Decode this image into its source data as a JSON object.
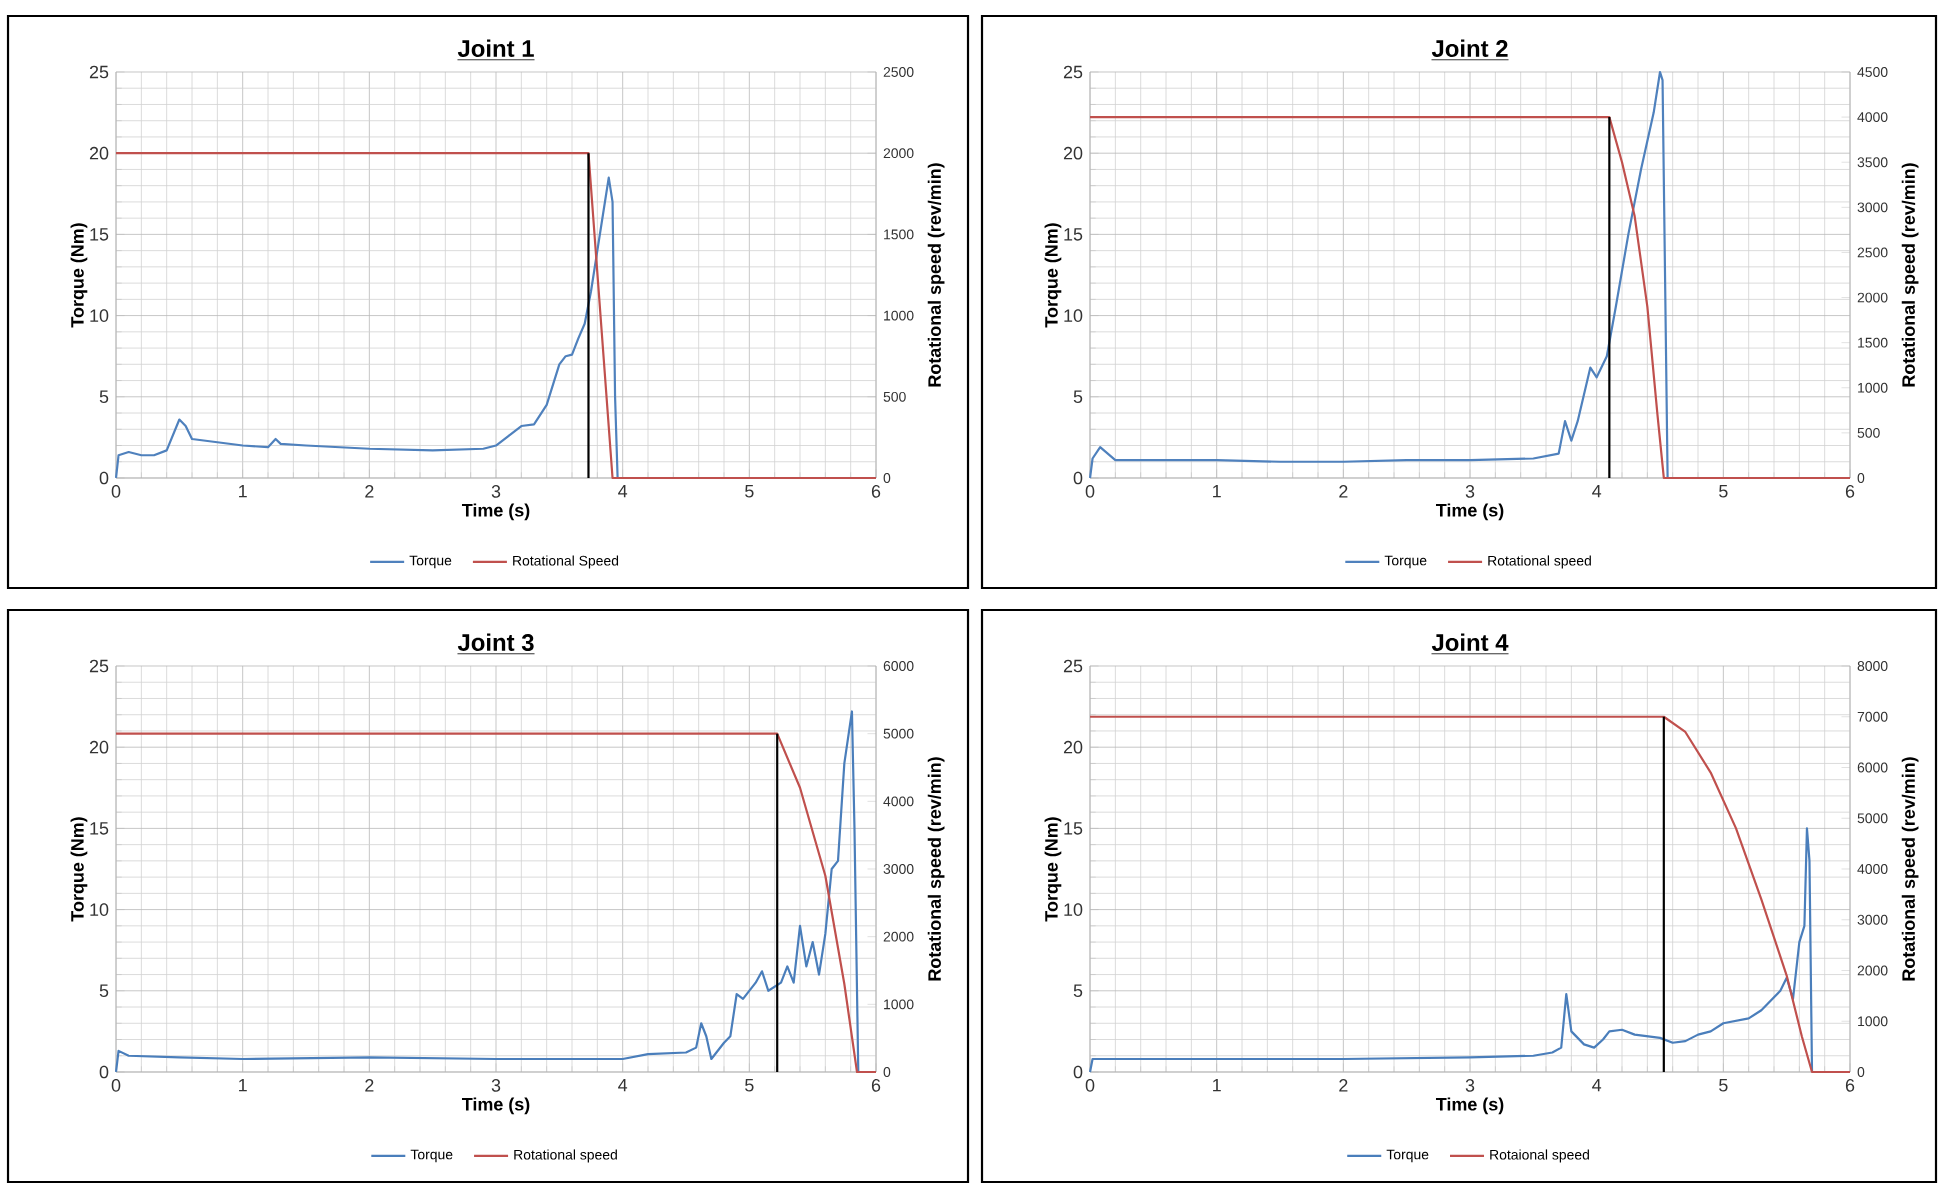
{
  "chart_data": [
    {
      "type": "line",
      "title": "Joint 1",
      "xlabel": "Time (s)",
      "ylabel": "Torque (Nm)",
      "y2label": "Rotational speed (rev/min)",
      "xlim": [
        0,
        6
      ],
      "xticks": [
        0,
        1,
        2,
        3,
        4,
        5,
        6
      ],
      "ylim": [
        0,
        25
      ],
      "yticks": [
        0,
        5,
        10,
        15,
        20,
        25
      ],
      "y2lim": [
        0,
        2500
      ],
      "y2ticks": [
        0,
        500,
        1000,
        1500,
        2000,
        2500
      ],
      "grid": true,
      "legend": "bottom",
      "series": [
        {
          "name": "Torque",
          "color": "#4f81bd",
          "x": [
            0,
            0.02,
            0.1,
            0.2,
            0.3,
            0.4,
            0.5,
            0.55,
            0.6,
            0.8,
            1.0,
            1.2,
            1.26,
            1.3,
            1.5,
            2.0,
            2.5,
            2.9,
            3.0,
            3.1,
            3.2,
            3.3,
            3.4,
            3.5,
            3.55,
            3.6,
            3.65,
            3.7,
            3.75,
            3.8,
            3.85,
            3.89,
            3.92,
            3.94,
            3.96
          ],
          "values": [
            0,
            1.4,
            1.6,
            1.4,
            1.4,
            1.7,
            3.6,
            3.2,
            2.4,
            2.2,
            2.0,
            1.9,
            2.4,
            2.1,
            2.0,
            1.8,
            1.7,
            1.8,
            2.0,
            2.6,
            3.2,
            3.3,
            4.5,
            7.0,
            7.5,
            7.6,
            8.6,
            9.5,
            11.5,
            14,
            16.5,
            18.5,
            17,
            5,
            0
          ]
        },
        {
          "name": "Rotational Speed",
          "color": "#c0504d",
          "axis": "y2",
          "x": [
            0,
            3.73,
            3.92,
            6
          ],
          "values": [
            2000,
            2000,
            0,
            0
          ]
        },
        {
          "color": "#000000",
          "axis": "y2",
          "x": [
            3.73,
            3.73
          ],
          "values": [
            0,
            2000
          ]
        }
      ]
    },
    {
      "type": "line",
      "title": "Joint 2",
      "xlabel": "Time (s)",
      "ylabel": "Torque (Nm)",
      "y2label": "Rotational speed (rev/min)",
      "xlim": [
        0,
        6
      ],
      "xticks": [
        0,
        1,
        2,
        3,
        4,
        5,
        6
      ],
      "ylim": [
        0,
        25
      ],
      "yticks": [
        0,
        5,
        10,
        15,
        20,
        25
      ],
      "y2lim": [
        0,
        4500
      ],
      "y2ticks": [
        0,
        500,
        1000,
        1500,
        2000,
        2500,
        3000,
        3500,
        4000,
        4500
      ],
      "grid": true,
      "legend": "bottom",
      "series": [
        {
          "name": "Torque",
          "color": "#4f81bd",
          "x": [
            0,
            0.02,
            0.08,
            0.2,
            0.5,
            1,
            1.5,
            2,
            2.5,
            3,
            3.5,
            3.7,
            3.75,
            3.8,
            3.85,
            3.95,
            4.0,
            4.08,
            4.15,
            4.25,
            4.35,
            4.45,
            4.5,
            4.52,
            4.56
          ],
          "values": [
            0,
            1.2,
            1.9,
            1.1,
            1.1,
            1.1,
            1.0,
            1.0,
            1.1,
            1.1,
            1.2,
            1.5,
            3.5,
            2.3,
            3.5,
            6.8,
            6.2,
            7.5,
            10.5,
            15,
            19,
            22.5,
            25,
            24.5,
            0
          ]
        },
        {
          "name": "Rotational speed",
          "color": "#c0504d",
          "axis": "y2",
          "x": [
            0,
            4.1,
            4.2,
            4.3,
            4.4,
            4.48,
            4.53,
            6
          ],
          "values": [
            4000,
            4000,
            3500,
            2900,
            1900,
            700,
            0,
            0
          ]
        },
        {
          "color": "#000000",
          "axis": "y2",
          "x": [
            4.1,
            4.1
          ],
          "values": [
            0,
            4000
          ]
        }
      ]
    },
    {
      "type": "line",
      "title": "Joint 3",
      "xlabel": "Time (s)",
      "ylabel": "Torque (Nm)",
      "y2label": "Rotational speed (rev/min)",
      "xlim": [
        0,
        6
      ],
      "xticks": [
        0,
        1,
        2,
        3,
        4,
        5,
        6
      ],
      "ylim": [
        0,
        25
      ],
      "yticks": [
        0,
        5,
        10,
        15,
        20,
        25
      ],
      "y2lim": [
        0,
        6000
      ],
      "y2ticks": [
        0,
        1000,
        2000,
        3000,
        4000,
        5000,
        6000
      ],
      "grid": true,
      "legend": "bottom",
      "series": [
        {
          "name": "Torque",
          "color": "#4a7ebb",
          "x": [
            0,
            0.02,
            0.1,
            0.5,
            1,
            2,
            3,
            4,
            4.2,
            4.5,
            4.58,
            4.62,
            4.66,
            4.7,
            4.8,
            4.85,
            4.9,
            4.95,
            5.05,
            5.1,
            5.15,
            5.25,
            5.3,
            5.35,
            5.4,
            5.45,
            5.5,
            5.55,
            5.6,
            5.65,
            5.7,
            5.75,
            5.81,
            5.83,
            5.86
          ],
          "values": [
            0,
            1.3,
            1.0,
            0.9,
            0.8,
            0.9,
            0.8,
            0.8,
            1.1,
            1.2,
            1.5,
            3.0,
            2.2,
            0.8,
            1.8,
            2.2,
            4.8,
            4.5,
            5.5,
            6.2,
            5.0,
            5.5,
            6.5,
            5.5,
            9.0,
            6.5,
            8.0,
            6.0,
            8.5,
            12.5,
            13,
            19,
            22.2,
            15,
            0
          ]
        },
        {
          "name": "Rotational speed",
          "color": "#c0504d",
          "axis": "y2",
          "x": [
            0,
            5.22,
            5.4,
            5.6,
            5.75,
            5.85,
            6
          ],
          "values": [
            5000,
            5000,
            4200,
            2900,
            1300,
            0,
            0
          ]
        },
        {
          "color": "#000000",
          "axis": "y2",
          "x": [
            5.22,
            5.22
          ],
          "values": [
            0,
            5000
          ]
        }
      ]
    },
    {
      "type": "line",
      "title": "Joint 4",
      "xlabel": "Time (s)",
      "ylabel": "Torque (Nm)",
      "y2label": "Rotational speed (rev/min)",
      "xlim": [
        0,
        6
      ],
      "xticks": [
        0,
        1,
        2,
        3,
        4,
        5,
        6
      ],
      "ylim": [
        0,
        25
      ],
      "yticks": [
        0,
        5,
        10,
        15,
        20,
        25
      ],
      "y2lim": [
        0,
        8000
      ],
      "y2ticks": [
        0,
        1000,
        2000,
        3000,
        4000,
        5000,
        6000,
        7000,
        8000
      ],
      "grid": true,
      "legend": "bottom",
      "series": [
        {
          "name": "Torque",
          "color": "#4a7ebb",
          "x": [
            0,
            0.02,
            0.5,
            1,
            2,
            3,
            3.5,
            3.65,
            3.72,
            3.76,
            3.8,
            3.9,
            3.98,
            4.05,
            4.1,
            4.2,
            4.3,
            4.5,
            4.6,
            4.7,
            4.8,
            4.9,
            5.0,
            5.2,
            5.3,
            5.45,
            5.5,
            5.55,
            5.6,
            5.64,
            5.66,
            5.68,
            5.7
          ],
          "values": [
            0,
            0.8,
            0.8,
            0.8,
            0.8,
            0.9,
            1.0,
            1.2,
            1.5,
            4.8,
            2.5,
            1.7,
            1.5,
            2.0,
            2.5,
            2.6,
            2.3,
            2.1,
            1.8,
            1.9,
            2.3,
            2.5,
            3.0,
            3.3,
            3.8,
            5.0,
            5.8,
            4.5,
            8.0,
            9.0,
            15,
            13,
            0
          ]
        },
        {
          "name": "Rotaional speed",
          "color": "#c0504d",
          "axis": "y2",
          "x": [
            0,
            4.53,
            4.7,
            4.9,
            5.1,
            5.3,
            5.5,
            5.62,
            5.7,
            6
          ],
          "values": [
            7000,
            7000,
            6700,
            5900,
            4800,
            3400,
            1900,
            700,
            0,
            0
          ]
        },
        {
          "color": "#000000",
          "axis": "y2",
          "x": [
            4.53,
            4.53
          ],
          "values": [
            0,
            7000
          ]
        }
      ]
    }
  ]
}
